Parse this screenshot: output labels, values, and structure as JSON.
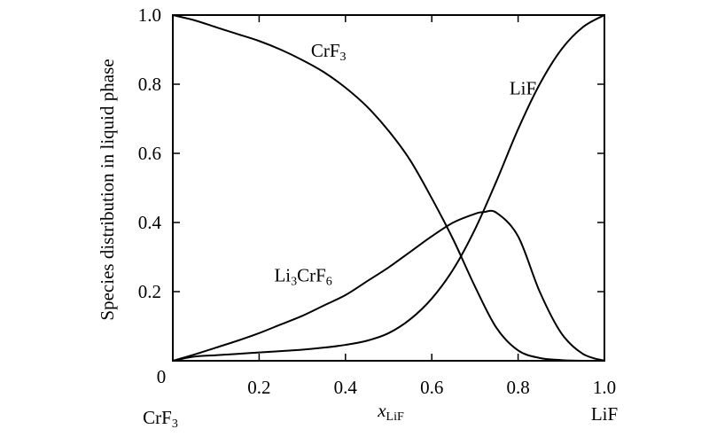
{
  "chart_data": {
    "type": "line",
    "ylabel": "Species distribution in liquid phase",
    "xlabel": {
      "main": "x",
      "sub": "LiF"
    },
    "end_labels": {
      "left": {
        "main": "CrF",
        "sub": "3"
      },
      "right": {
        "main": "LiF"
      }
    },
    "xlim": [
      0,
      1
    ],
    "ylim": [
      0,
      1
    ],
    "x_ticks": [
      0.2,
      0.4,
      0.6,
      0.8,
      1.0
    ],
    "x_tick_labels": [
      "0.2",
      "0.4",
      "0.6",
      "0.8",
      "1.0"
    ],
    "y_ticks": [
      0.2,
      0.4,
      0.6,
      0.8,
      1.0
    ],
    "y_tick_labels": [
      "0.2",
      "0.4",
      "0.6",
      "0.8",
      "1.0"
    ],
    "origin_label": "0",
    "grid": false,
    "series": [
      {
        "name": "CrF3",
        "label_parts": [
          {
            "t": "CrF"
          },
          {
            "t": "3",
            "sub": true
          }
        ],
        "label_at": {
          "x": 0.32,
          "y": 0.88
        },
        "x": [
          0,
          0.05,
          0.1,
          0.15,
          0.2,
          0.25,
          0.3,
          0.35,
          0.4,
          0.45,
          0.5,
          0.55,
          0.6,
          0.65,
          0.7,
          0.75,
          0.8,
          0.85,
          0.9,
          0.95,
          1.0
        ],
        "values": [
          1.0,
          0.985,
          0.965,
          0.945,
          0.925,
          0.9,
          0.87,
          0.835,
          0.79,
          0.735,
          0.665,
          0.58,
          0.47,
          0.35,
          0.215,
          0.095,
          0.03,
          0.008,
          0.002,
          0.0,
          0.0
        ]
      },
      {
        "name": "LiF",
        "label_parts": [
          {
            "t": "LiF"
          }
        ],
        "label_at": {
          "x": 0.78,
          "y": 0.77
        },
        "x": [
          0,
          0.05,
          0.1,
          0.15,
          0.2,
          0.25,
          0.3,
          0.35,
          0.4,
          0.45,
          0.5,
          0.55,
          0.6,
          0.65,
          0.7,
          0.75,
          0.8,
          0.85,
          0.9,
          0.95,
          1.0
        ],
        "values": [
          0.0,
          0.012,
          0.016,
          0.02,
          0.024,
          0.028,
          0.032,
          0.038,
          0.046,
          0.058,
          0.08,
          0.12,
          0.18,
          0.265,
          0.38,
          0.52,
          0.67,
          0.8,
          0.9,
          0.965,
          1.0
        ]
      },
      {
        "name": "Li3CrF6",
        "label_parts": [
          {
            "t": "Li"
          },
          {
            "t": "3",
            "sub": true
          },
          {
            "t": "CrF"
          },
          {
            "t": "6",
            "sub": true
          }
        ],
        "label_at": {
          "x": 0.235,
          "y": 0.23
        },
        "x": [
          0,
          0.05,
          0.1,
          0.15,
          0.2,
          0.25,
          0.3,
          0.35,
          0.4,
          0.45,
          0.5,
          0.55,
          0.6,
          0.65,
          0.7,
          0.72,
          0.75,
          0.8,
          0.85,
          0.9,
          0.95,
          1.0
        ],
        "values": [
          0.0,
          0.018,
          0.038,
          0.058,
          0.08,
          0.105,
          0.13,
          0.16,
          0.19,
          0.23,
          0.27,
          0.315,
          0.36,
          0.4,
          0.425,
          0.43,
          0.428,
          0.36,
          0.2,
          0.08,
          0.02,
          0.0
        ]
      }
    ]
  }
}
